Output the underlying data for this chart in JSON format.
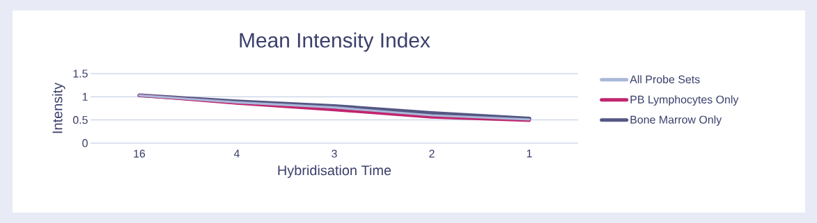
{
  "chart_data": {
    "type": "line",
    "title": "Mean Intensity Index",
    "xlabel": "Hybridisation Time",
    "ylabel": "Intensity",
    "categories": [
      "16",
      "4",
      "3",
      "2",
      "1"
    ],
    "series": [
      {
        "name": "All Probe Sets",
        "color": "#a9b8d8",
        "values": [
          1.03,
          0.88,
          0.77,
          0.6,
          0.51
        ]
      },
      {
        "name": "PB Lymphocytes Only",
        "color": "#c0266e",
        "values": [
          1.03,
          0.86,
          0.72,
          0.56,
          0.49
        ]
      },
      {
        "name": "Bone Marrow Only",
        "color": "#555783",
        "values": [
          1.03,
          0.9,
          0.8,
          0.65,
          0.53
        ]
      }
    ],
    "ylim": [
      0,
      1.5
    ],
    "yticks": [
      0,
      0.5,
      1,
      1.5
    ],
    "grid": "y",
    "legend": "right",
    "marker": "none",
    "line_style": "solid"
  }
}
